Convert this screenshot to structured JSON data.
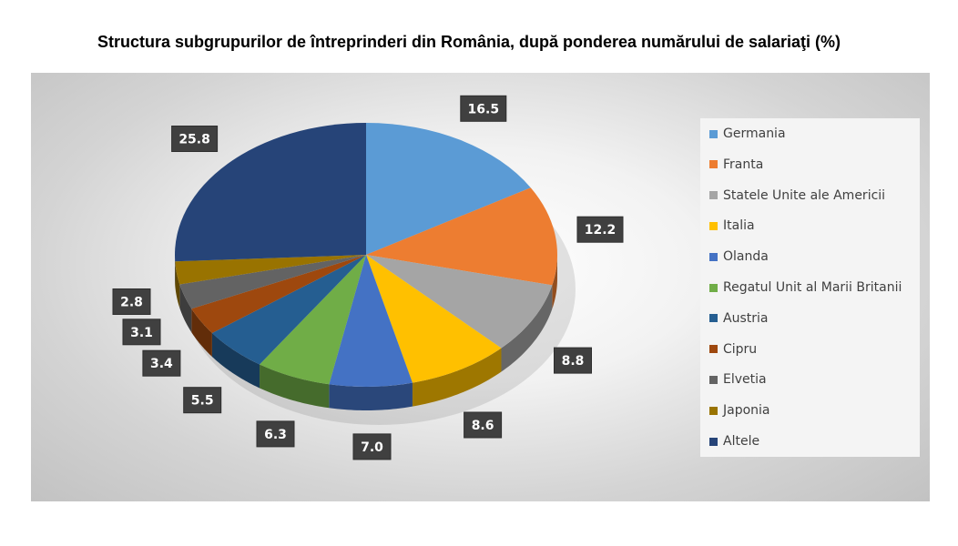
{
  "chart_data": {
    "type": "pie",
    "title": "Structura subgrupurilor de întreprinderi din România, după ponderea numărului de salariaţi (%)",
    "legend_position": "right",
    "slices": [
      {
        "label": "Germania",
        "value": 16.5,
        "value_label": "16.5",
        "color": "#5B9BD5"
      },
      {
        "label": "Franta",
        "value": 12.2,
        "value_label": "12.2",
        "color": "#ED7D31"
      },
      {
        "label": "Statele Unite ale Americii",
        "value": 8.8,
        "value_label": "8.8",
        "color": "#A5A5A5"
      },
      {
        "label": "Italia",
        "value": 8.6,
        "value_label": "8.6",
        "color": "#FFC000"
      },
      {
        "label": "Olanda",
        "value": 7.0,
        "value_label": "7.0",
        "color": "#4472C4"
      },
      {
        "label": "Regatul Unit al Marii Britanii",
        "value": 6.3,
        "value_label": "6.3",
        "color": "#70AD47"
      },
      {
        "label": "Austria",
        "value": 5.5,
        "value_label": "5.5",
        "color": "#255E91"
      },
      {
        "label": "Cipru",
        "value": 3.4,
        "value_label": "3.4",
        "color": "#9E480E"
      },
      {
        "label": "Elvetia",
        "value": 3.1,
        "value_label": "3.1",
        "color": "#636363"
      },
      {
        "label": "Japonia",
        "value": 2.8,
        "value_label": "2.8",
        "color": "#997300"
      },
      {
        "label": "Altele",
        "value": 25.8,
        "value_label": "25.8",
        "color": "#264478"
      }
    ]
  }
}
